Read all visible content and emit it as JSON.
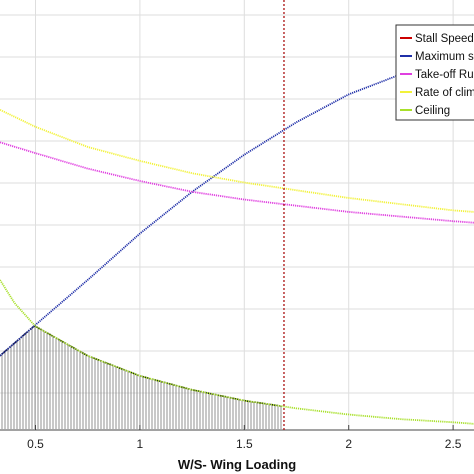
{
  "chart_data": {
    "type": "line",
    "xlabel": "W/S- Wing Loading",
    "ylabel": "",
    "title": "",
    "xlim": [
      0.33,
      2.6
    ],
    "x_ticks": [
      "0.5",
      "1",
      "1.5",
      "2",
      "2.5"
    ],
    "x_tick_values": [
      0.5,
      1,
      1.5,
      2,
      2.5
    ],
    "grid": true,
    "legend_placement": "top-right",
    "legend": [
      {
        "label": "Stall Speed",
        "color": "#cc0000"
      },
      {
        "label": "Maximum s",
        "color": "#1f2fa8"
      },
      {
        "label": "Take-off Ru",
        "color": "#e040e0"
      },
      {
        "label": "Rate of clim",
        "color": "#f2f23a"
      },
      {
        "label": "Ceiling",
        "color": "#a8e02a"
      }
    ],
    "stall_speed_x": 1.69,
    "feasible_region": {
      "x_from": 0.33,
      "x_to": 1.69,
      "hatched": true,
      "color": "#777777"
    },
    "series": [
      {
        "name": "Maximum s",
        "color": "#1f2fa8",
        "x": [
          0.33,
          0.5,
          0.75,
          1.0,
          1.25,
          1.5,
          1.75,
          2.0,
          2.25,
          2.5,
          2.6
        ],
        "y": [
          0.06,
          0.26,
          0.55,
          0.85,
          1.12,
          1.36,
          1.57,
          1.75,
          1.88,
          1.96,
          1.98
        ]
      },
      {
        "name": "Take-off Ru",
        "color": "#e040e0",
        "x": [
          0.33,
          0.5,
          0.75,
          1.0,
          1.25,
          1.5,
          1.75,
          2.0,
          2.25,
          2.5,
          2.6
        ],
        "y": [
          1.44,
          1.37,
          1.27,
          1.19,
          1.12,
          1.07,
          1.03,
          0.99,
          0.96,
          0.93,
          0.92
        ]
      },
      {
        "name": "Rate of clim",
        "color": "#f2f23a",
        "x": [
          0.33,
          0.5,
          0.75,
          1.0,
          1.25,
          1.5,
          1.75,
          2.0,
          2.25,
          2.5,
          2.6
        ],
        "y": [
          1.65,
          1.54,
          1.41,
          1.32,
          1.24,
          1.18,
          1.13,
          1.08,
          1.04,
          1.0,
          0.99
        ]
      },
      {
        "name": "Ceiling",
        "color": "#a8e02a",
        "x": [
          0.33,
          0.4,
          0.5,
          0.75,
          1.0,
          1.25,
          1.5,
          1.75,
          2.0,
          2.25,
          2.5,
          2.6
        ],
        "y": [
          0.55,
          0.4,
          0.25,
          0.06,
          -0.07,
          -0.16,
          -0.23,
          -0.28,
          -0.32,
          -0.35,
          -0.37,
          -0.38
        ]
      }
    ]
  }
}
